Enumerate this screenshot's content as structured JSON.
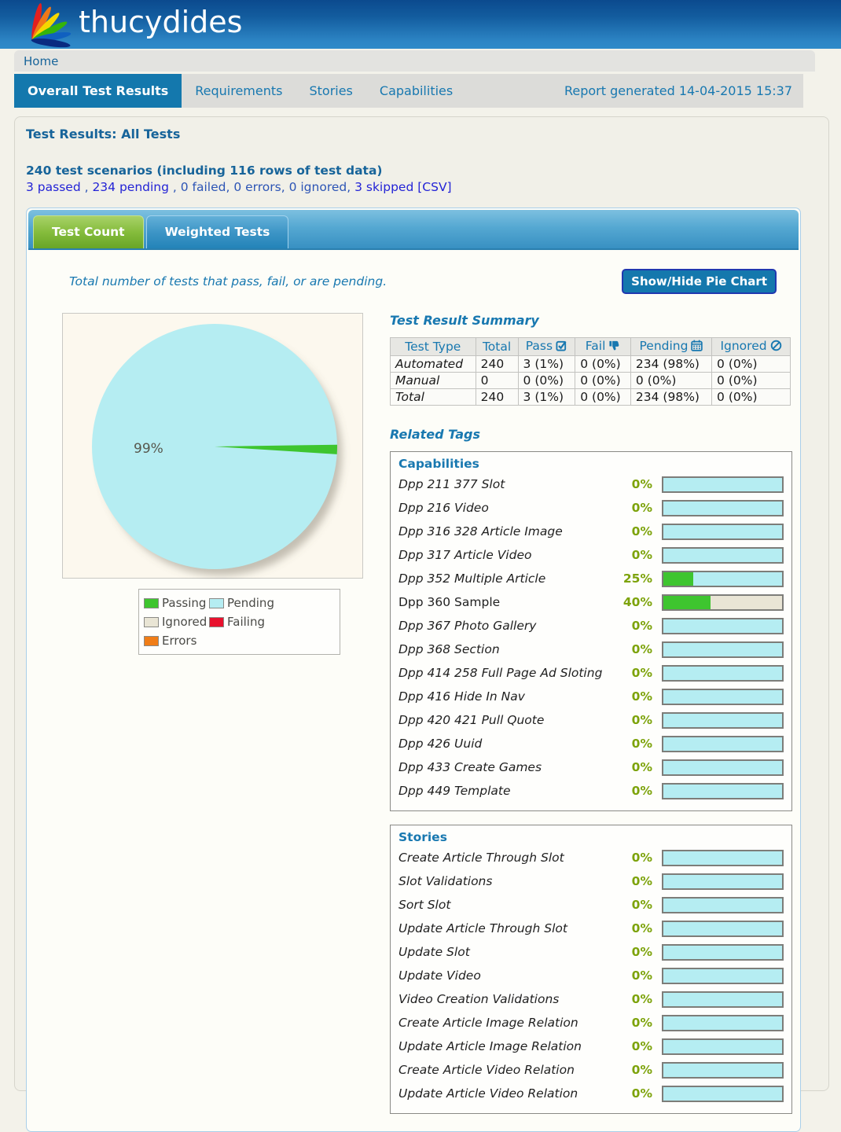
{
  "banner": {
    "logo_text": "thucydides"
  },
  "breadcrumb": {
    "home": "Home"
  },
  "nav_tabs": {
    "active": "Overall Test Results",
    "items": [
      "Requirements",
      "Stories",
      "Capabilities"
    ],
    "report_generated": "Report generated 14-04-2015 15:37"
  },
  "page": {
    "title": "Test Results: All Tests",
    "scenario_summary": "240 test scenarios (including 116 rows of test data)",
    "result_line": {
      "passed": "3 passed",
      "sep1": " , ",
      "pending": "234 pending",
      "sep2": " , ",
      "rest": "0 failed, 0 errors, 0 ignored, ",
      "skipped": "3 skipped",
      "sep3": " ",
      "csv": "[CSV]"
    }
  },
  "tabs_widget": {
    "active_tab": "Test Count",
    "inactive_tab": "Weighted Tests",
    "description": "Total number of tests that pass, fail, or are pending.",
    "toggle_button": "Show/Hide Pie Chart"
  },
  "chart_data": {
    "type": "pie",
    "unit": "percent",
    "labels": [
      "Passing",
      "Pending",
      "Ignored",
      "Failing",
      "Errors"
    ],
    "values": [
      1.25,
      98.75,
      0,
      0,
      0
    ],
    "annotation": "99%",
    "legend_position": "below-left",
    "colors": [
      "#3ec52f",
      "#b5edf2",
      "#e9e5d5",
      "#e8112d",
      "#f07d17"
    ]
  },
  "colors": {
    "passing": "#3ec52f",
    "pending": "#b5edf2",
    "ignored": "#e9e5d5",
    "failing": "#e8112d",
    "errors": "#f07d17",
    "accent_blue": "#1878b0",
    "heading_teal": "#17649a"
  },
  "legend": {
    "items": [
      {
        "label": "Passing",
        "color_key": "passing"
      },
      {
        "label": "Pending",
        "color_key": "pending"
      },
      {
        "label": "Ignored",
        "color_key": "ignored"
      },
      {
        "label": "Failing",
        "color_key": "failing"
      },
      {
        "label": "Errors",
        "color_key": "errors"
      }
    ]
  },
  "summary_table": {
    "title": "Test Result Summary",
    "columns": [
      {
        "label": "Test Type"
      },
      {
        "label": "Total"
      },
      {
        "label": "Pass",
        "icon": "checkbox-check-icon"
      },
      {
        "label": "Fail",
        "icon": "thumbs-down-icon"
      },
      {
        "label": "Pending",
        "icon": "calendar-icon"
      },
      {
        "label": "Ignored",
        "icon": "ban-icon"
      }
    ],
    "rows": [
      [
        "Automated",
        "240",
        "3 (1%)",
        "0 (0%)",
        "234 (98%)",
        "0 (0%)"
      ],
      [
        "Manual",
        "0",
        "0 (0%)",
        "0 (0%)",
        "0 (0%)",
        "0 (0%)"
      ],
      [
        "Total",
        "240",
        "3 (1%)",
        "0 (0%)",
        "234 (98%)",
        "0 (0%)"
      ]
    ]
  },
  "related_tags": {
    "title": "Related Tags",
    "groups": [
      {
        "heading": "Capabilities",
        "rows": [
          {
            "label": "Dpp 211 377 Slot",
            "pct": "0%",
            "green": 0,
            "rest": "pending",
            "italic": true
          },
          {
            "label": "Dpp 216 Video",
            "pct": "0%",
            "green": 0,
            "rest": "pending",
            "italic": true
          },
          {
            "label": "Dpp 316 328 Article Image",
            "pct": "0%",
            "green": 0,
            "rest": "pending",
            "italic": true
          },
          {
            "label": "Dpp 317 Article Video",
            "pct": "0%",
            "green": 0,
            "rest": "pending",
            "italic": true
          },
          {
            "label": "Dpp 352 Multiple Article",
            "pct": "25%",
            "green": 25,
            "rest": "pending",
            "italic": true
          },
          {
            "label": "Dpp 360 Sample",
            "pct": "40%",
            "green": 40,
            "rest": "ignored",
            "italic": false
          },
          {
            "label": "Dpp 367 Photo Gallery",
            "pct": "0%",
            "green": 0,
            "rest": "pending",
            "italic": true
          },
          {
            "label": "Dpp 368 Section",
            "pct": "0%",
            "green": 0,
            "rest": "pending",
            "italic": true
          },
          {
            "label": "Dpp 414 258 Full Page Ad Sloting",
            "pct": "0%",
            "green": 0,
            "rest": "pending",
            "italic": true
          },
          {
            "label": "Dpp 416 Hide In Nav",
            "pct": "0%",
            "green": 0,
            "rest": "pending",
            "italic": true
          },
          {
            "label": "Dpp 420 421 Pull Quote",
            "pct": "0%",
            "green": 0,
            "rest": "pending",
            "italic": true
          },
          {
            "label": "Dpp 426 Uuid",
            "pct": "0%",
            "green": 0,
            "rest": "pending",
            "italic": true
          },
          {
            "label": "Dpp 433 Create Games",
            "pct": "0%",
            "green": 0,
            "rest": "pending",
            "italic": true
          },
          {
            "label": "Dpp 449 Template",
            "pct": "0%",
            "green": 0,
            "rest": "pending",
            "italic": true
          }
        ]
      },
      {
        "heading": "Stories",
        "rows": [
          {
            "label": "Create Article Through Slot",
            "pct": "0%",
            "green": 0,
            "rest": "pending",
            "italic": true
          },
          {
            "label": "Slot Validations",
            "pct": "0%",
            "green": 0,
            "rest": "pending",
            "italic": true
          },
          {
            "label": "Sort Slot",
            "pct": "0%",
            "green": 0,
            "rest": "pending",
            "italic": true
          },
          {
            "label": "Update Article Through Slot",
            "pct": "0%",
            "green": 0,
            "rest": "pending",
            "italic": true
          },
          {
            "label": "Update Slot",
            "pct": "0%",
            "green": 0,
            "rest": "pending",
            "italic": true
          },
          {
            "label": "Update Video",
            "pct": "0%",
            "green": 0,
            "rest": "pending",
            "italic": true
          },
          {
            "label": "Video Creation Validations",
            "pct": "0%",
            "green": 0,
            "rest": "pending",
            "italic": true
          },
          {
            "label": "Create Article Image Relation",
            "pct": "0%",
            "green": 0,
            "rest": "pending",
            "italic": true
          },
          {
            "label": "Update Article Image Relation",
            "pct": "0%",
            "green": 0,
            "rest": "pending",
            "italic": true
          },
          {
            "label": "Create Article Video Relation",
            "pct": "0%",
            "green": 0,
            "rest": "pending",
            "italic": true
          },
          {
            "label": "Update Article Video Relation",
            "pct": "0%",
            "green": 0,
            "rest": "pending",
            "italic": true
          }
        ]
      }
    ]
  }
}
